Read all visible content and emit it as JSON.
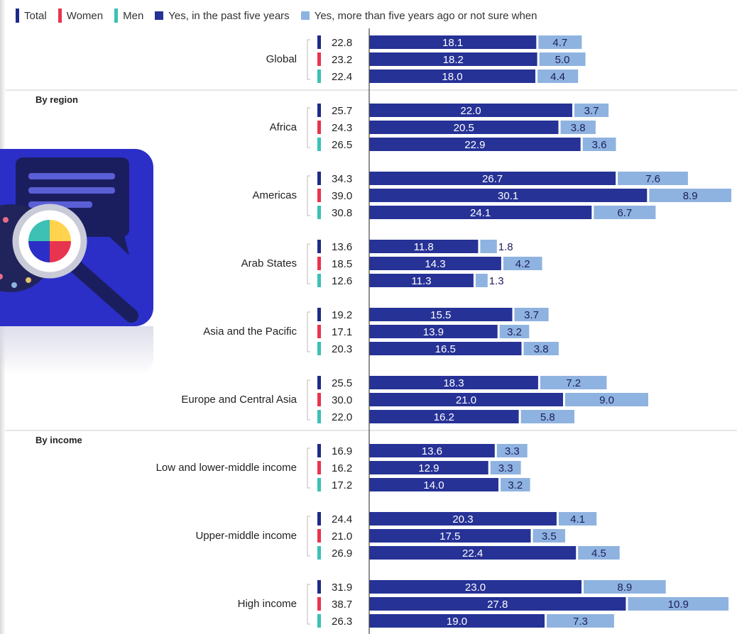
{
  "legend": {
    "total": "Total",
    "women": "Women",
    "men": "Men",
    "recent": "Yes, in the past five years",
    "older": "Yes, more than five years ago or not sure when"
  },
  "colors": {
    "total": "#1f2a8a",
    "women": "#e8344f",
    "men": "#3cc1b4",
    "recent": "#263296",
    "older": "#8fb3e0",
    "divider": "#cccccc",
    "axis": "#444444"
  },
  "icon": {
    "name": "survey-magnifier-app-icon"
  },
  "chart_data": {
    "type": "bar",
    "orientation": "horizontal",
    "stacked": true,
    "series": [
      {
        "name": "Yes, in the past five years"
      },
      {
        "name": "Yes, more than five years ago or not sure when"
      }
    ],
    "xlim": [
      0,
      40
    ],
    "sections": [
      {
        "heading": "",
        "groups": [
          {
            "label": "Global",
            "rows": [
              {
                "type": "total",
                "total": "22.8",
                "recent": 18.1,
                "recent_label": "18.1",
                "older": 4.7,
                "older_label": "4.7"
              },
              {
                "type": "women",
                "total": "23.2",
                "recent": 18.2,
                "recent_label": "18.2",
                "older": 5.0,
                "older_label": "5.0"
              },
              {
                "type": "men",
                "total": "22.4",
                "recent": 18.0,
                "recent_label": "18.0",
                "older": 4.4,
                "older_label": "4.4"
              }
            ]
          }
        ]
      },
      {
        "heading": "By region",
        "groups": [
          {
            "label": "Africa",
            "rows": [
              {
                "type": "total",
                "total": "25.7",
                "recent": 22.0,
                "recent_label": "22.0",
                "older": 3.7,
                "older_label": "3.7"
              },
              {
                "type": "women",
                "total": "24.3",
                "recent": 20.5,
                "recent_label": "20.5",
                "older": 3.8,
                "older_label": "3.8"
              },
              {
                "type": "men",
                "total": "26.5",
                "recent": 22.9,
                "recent_label": "22.9",
                "older": 3.6,
                "older_label": "3.6"
              }
            ]
          },
          {
            "label": "Americas",
            "rows": [
              {
                "type": "total",
                "total": "34.3",
                "recent": 26.7,
                "recent_label": "26.7",
                "older": 7.6,
                "older_label": "7.6"
              },
              {
                "type": "women",
                "total": "39.0",
                "recent": 30.1,
                "recent_label": "30.1",
                "older": 8.9,
                "older_label": "8.9"
              },
              {
                "type": "men",
                "total": "30.8",
                "recent": 24.1,
                "recent_label": "24.1",
                "older": 6.7,
                "older_label": "6.7"
              }
            ]
          },
          {
            "label": "Arab States",
            "rows": [
              {
                "type": "total",
                "total": "13.6",
                "recent": 11.8,
                "recent_label": "11.8",
                "older": 1.8,
                "older_label": "1.8"
              },
              {
                "type": "women",
                "total": "18.5",
                "recent": 14.3,
                "recent_label": "14.3",
                "older": 4.2,
                "older_label": "4.2"
              },
              {
                "type": "men",
                "total": "12.6",
                "recent": 11.3,
                "recent_label": "11.3",
                "older": 1.3,
                "older_label": "1.3"
              }
            ]
          },
          {
            "label": "Asia and the Pacific",
            "rows": [
              {
                "type": "total",
                "total": "19.2",
                "recent": 15.5,
                "recent_label": "15.5",
                "older": 3.7,
                "older_label": "3.7"
              },
              {
                "type": "women",
                "total": "17.1",
                "recent": 13.9,
                "recent_label": "13.9",
                "older": 3.2,
                "older_label": "3.2"
              },
              {
                "type": "men",
                "total": "20.3",
                "recent": 16.5,
                "recent_label": "16.5",
                "older": 3.8,
                "older_label": "3.8"
              }
            ]
          },
          {
            "label": "Europe and Central Asia",
            "rows": [
              {
                "type": "total",
                "total": "25.5",
                "recent": 18.3,
                "recent_label": "18.3",
                "older": 7.2,
                "older_label": "7.2"
              },
              {
                "type": "women",
                "total": "30.0",
                "recent": 21.0,
                "recent_label": "21.0",
                "older": 9.0,
                "older_label": "9.0"
              },
              {
                "type": "men",
                "total": "22.0",
                "recent": 16.2,
                "recent_label": "16.2",
                "older": 5.8,
                "older_label": "5.8"
              }
            ]
          }
        ]
      },
      {
        "heading": "By income",
        "groups": [
          {
            "label": "Low and lower-middle income",
            "rows": [
              {
                "type": "total",
                "total": "16.9",
                "recent": 13.6,
                "recent_label": "13.6",
                "older": 3.3,
                "older_label": "3.3"
              },
              {
                "type": "women",
                "total": "16.2",
                "recent": 12.9,
                "recent_label": "12.9",
                "older": 3.3,
                "older_label": "3.3"
              },
              {
                "type": "men",
                "total": "17.2",
                "recent": 14.0,
                "recent_label": "14.0",
                "older": 3.2,
                "older_label": "3.2"
              }
            ]
          },
          {
            "label": "Upper-middle income",
            "rows": [
              {
                "type": "total",
                "total": "24.4",
                "recent": 20.3,
                "recent_label": "20.3",
                "older": 4.1,
                "older_label": "4.1"
              },
              {
                "type": "women",
                "total": "21.0",
                "recent": 17.5,
                "recent_label": "17.5",
                "older": 3.5,
                "older_label": "3.5"
              },
              {
                "type": "men",
                "total": "26.9",
                "recent": 22.4,
                "recent_label": "22.4",
                "older": 4.5,
                "older_label": "4.5"
              }
            ]
          },
          {
            "label": "High income",
            "rows": [
              {
                "type": "total",
                "total": "31.9",
                "recent": 23.0,
                "recent_label": "23.0",
                "older": 8.9,
                "older_label": "8.9"
              },
              {
                "type": "women",
                "total": "38.7",
                "recent": 27.8,
                "recent_label": "27.8",
                "older": 10.9,
                "older_label": "10.9"
              },
              {
                "type": "men",
                "total": "26.3",
                "recent": 19.0,
                "recent_label": "19.0",
                "older": 7.3,
                "older_label": "7.3"
              }
            ]
          }
        ]
      }
    ]
  }
}
